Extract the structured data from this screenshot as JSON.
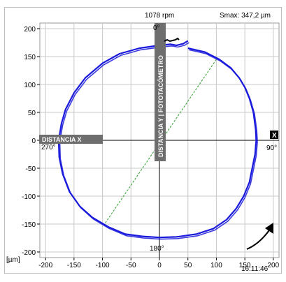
{
  "header": {
    "rpm": "1078 rpm",
    "smax": "Smax: 347,2 µm"
  },
  "labels": {
    "top_angle": "0°",
    "right_angle": "90°",
    "bottom_angle": "180°",
    "left_angle": "270°",
    "axis_x_tag": "DISTANCIA X",
    "axis_y_tag": "DISTANCIA Y | FOTOTACÓMETRO",
    "x_box": "X",
    "unit": "[µm]",
    "time": "16:11:46"
  },
  "colors": {
    "orbit": "#1a1adc",
    "diagonal": "#2a9d2a",
    "grid": "#c8c8c8",
    "axis": "#000000",
    "tag_bg": "#6e6e6e",
    "tag_text": "#ffffff"
  },
  "chart_data": {
    "type": "scatter",
    "subtype": "orbit",
    "xlim": [
      -210,
      210
    ],
    "ylim": [
      -210,
      210
    ],
    "x_ticks": [
      -200,
      -150,
      -100,
      -50,
      0,
      50,
      100,
      150,
      200
    ],
    "y_ticks": [
      200,
      150,
      100,
      50,
      0,
      -50,
      -100,
      -150,
      -200
    ],
    "grid": true,
    "orbit_points": [
      [
        50,
        165
      ],
      [
        80,
        158
      ],
      [
        105,
        145
      ],
      [
        125,
        130
      ],
      [
        140,
        112
      ],
      [
        150,
        95
      ],
      [
        158,
        75
      ],
      [
        165,
        50
      ],
      [
        169,
        20
      ],
      [
        170,
        0
      ],
      [
        168,
        -25
      ],
      [
        163,
        -50
      ],
      [
        158,
        -75
      ],
      [
        148,
        -100
      ],
      [
        135,
        -122
      ],
      [
        118,
        -142
      ],
      [
        95,
        -158
      ],
      [
        65,
        -168
      ],
      [
        30,
        -173
      ],
      [
        0,
        -174
      ],
      [
        -30,
        -172
      ],
      [
        -60,
        -168
      ],
      [
        -90,
        -155
      ],
      [
        -118,
        -138
      ],
      [
        -140,
        -118
      ],
      [
        -158,
        -92
      ],
      [
        -170,
        -60
      ],
      [
        -176,
        -30
      ],
      [
        -177,
        0
      ],
      [
        -172,
        30
      ],
      [
        -165,
        55
      ],
      [
        -150,
        85
      ],
      [
        -130,
        112
      ],
      [
        -100,
        138
      ],
      [
        -70,
        155
      ],
      [
        -35,
        165
      ],
      [
        0,
        170
      ],
      [
        20,
        172
      ],
      [
        30,
        170
      ],
      [
        42,
        173
      ],
      [
        50,
        178
      ]
    ],
    "orbit_secondary_offset": [
      2,
      -3
    ],
    "diagonal_line": [
      [
        -95,
        -148
      ],
      [
        100,
        145
      ]
    ]
  }
}
